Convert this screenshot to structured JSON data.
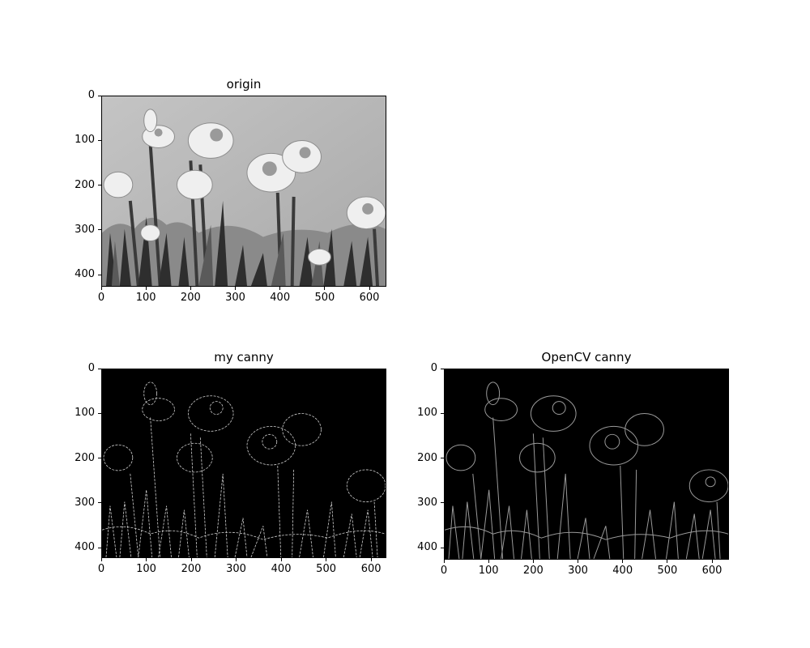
{
  "chart_data": [
    {
      "type": "image",
      "title": "origin",
      "colormap": "gray",
      "xlim": [
        0,
        638
      ],
      "ylim": [
        427,
        0
      ],
      "xticks": [
        0,
        100,
        200,
        300,
        400,
        500,
        600
      ],
      "yticks": [
        0,
        100,
        200,
        300,
        400
      ]
    },
    {
      "type": "image",
      "title": "my canny",
      "colormap": "gray",
      "xlim": [
        0,
        634
      ],
      "ylim": [
        423,
        0
      ],
      "xticks": [
        0,
        100,
        200,
        300,
        400,
        500,
        600
      ],
      "yticks": [
        0,
        100,
        200,
        300,
        400
      ]
    },
    {
      "type": "image",
      "title": "OpenCV canny",
      "colormap": "gray",
      "xlim": [
        0,
        638
      ],
      "ylim": [
        427,
        0
      ],
      "xticks": [
        0,
        100,
        200,
        300,
        400,
        500,
        600
      ],
      "yticks": [
        0,
        100,
        200,
        300,
        400
      ]
    }
  ]
}
